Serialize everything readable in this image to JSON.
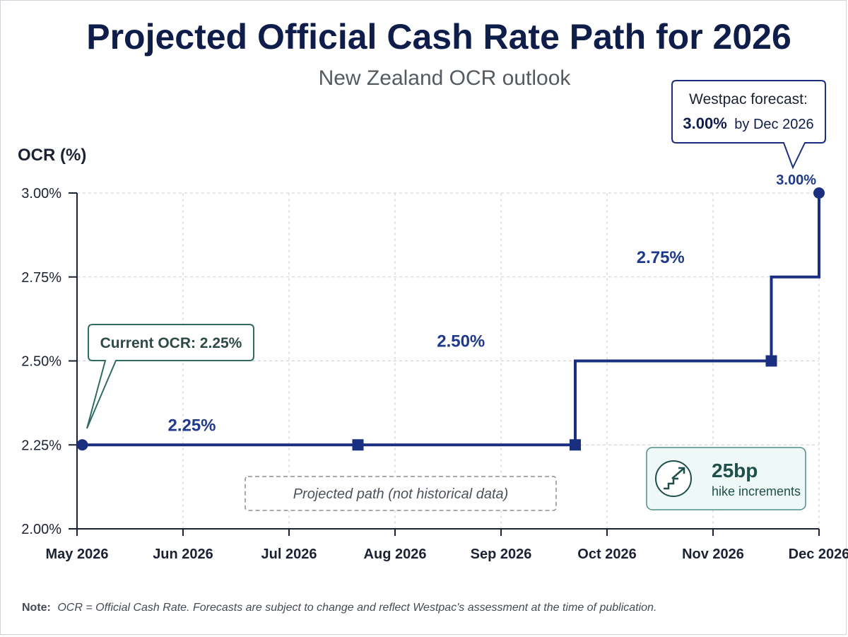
{
  "header": {
    "title": "Projected Official Cash Rate Path for 2026",
    "subtitle": "New Zealand OCR outlook"
  },
  "chart_data": {
    "type": "line",
    "style": "step",
    "title": "Projected Official Cash Rate Path for 2026",
    "subtitle": "New Zealand OCR outlook",
    "ylabel": "OCR (%)",
    "xlabel": "",
    "ylim": [
      2.0,
      3.0
    ],
    "yticks": [
      "2.00%",
      "2.25%",
      "2.50%",
      "2.75%",
      "3.00%"
    ],
    "ytick_values": [
      2.0,
      2.25,
      2.5,
      2.75,
      3.0
    ],
    "categories": [
      "May 2026",
      "Jun 2026",
      "Jul 2026",
      "Aug 2026",
      "Sep 2026",
      "Oct 2026",
      "Nov 2026",
      "Dec 2026"
    ],
    "grid": true,
    "series": [
      {
        "points": [
          {
            "x": 0.05,
            "y": 2.25,
            "marker": "circle"
          },
          {
            "x": 2.65,
            "y": 2.25,
            "marker": "square"
          },
          {
            "x": 4.7,
            "y": 2.5,
            "marker": "square"
          },
          {
            "x": 6.55,
            "y": 2.75,
            "marker": "square"
          },
          {
            "x": 7.0,
            "y": 3.0,
            "marker": "circle"
          }
        ],
        "color": "#1a2f80"
      }
    ],
    "segment_labels": [
      {
        "text": "2.25%",
        "value": 2.25
      },
      {
        "text": "2.50%",
        "value": 2.5
      },
      {
        "text": "2.75%",
        "value": 2.75
      },
      {
        "text": "3.00%",
        "value": 3.0
      }
    ]
  },
  "callouts": {
    "current": "Current OCR: 2.25%",
    "westpac_line1": "Westpac forecast:",
    "westpac_value": "3.00%",
    "westpac_suffix": "by Dec 2026",
    "projected": "Projected path (not historical data)"
  },
  "hike_box": {
    "amount": "25bp",
    "label": "hike increments",
    "icon": "stairs-arrow-up-icon"
  },
  "note": {
    "prefix": "Note:",
    "text": "OCR = Official Cash Rate. Forecasts are subject to change and reflect Westpac's assessment at the time of publication."
  },
  "colors": {
    "line": "#1a2f80",
    "title": "#0f1d4a",
    "callout_green": "#2f6b63",
    "hike_box_bg": "#eef8f6",
    "hike_box_border": "#4f8f86"
  }
}
